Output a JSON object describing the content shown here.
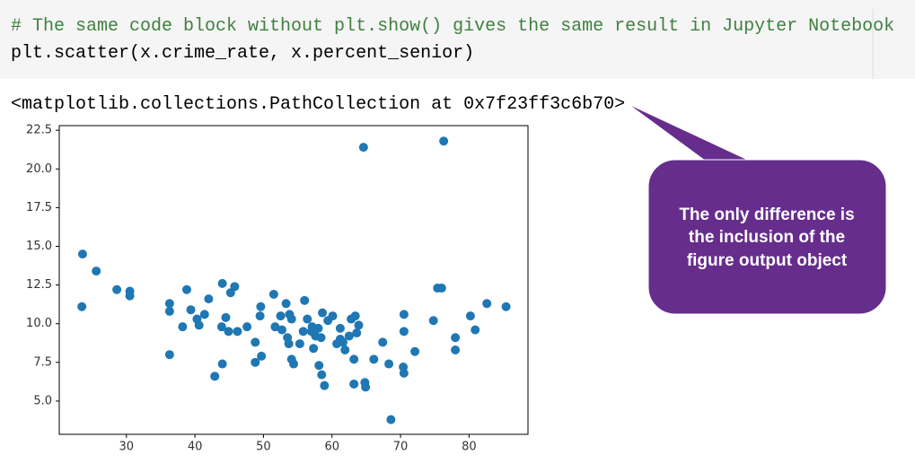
{
  "code": {
    "lines": [
      "# The same code block without plt.show() gives the same result in Jupyter Notebook",
      "plt.scatter(x.crime_rate, x.percent_senior)"
    ]
  },
  "output": {
    "text": "<matplotlib.collections.PathCollection at 0x7f23ff3c6b70>"
  },
  "callout": {
    "lines": [
      "The only difference is",
      "the inclusion of the",
      "figure output object"
    ]
  },
  "chart_data": {
    "type": "scatter",
    "color": "#1f77b4",
    "x": [
      23.5,
      23.6,
      25.6,
      28.6,
      30.5,
      30.5,
      36.3,
      36.3,
      36.3,
      38.8,
      38.2,
      39.4,
      40.3,
      40.6,
      41.4,
      42.0,
      44.0,
      45.2,
      45.8,
      42.9,
      44.0,
      43.9,
      44.5,
      44.9,
      46.2,
      47.6,
      48.8,
      48.8,
      49.7,
      49.6,
      49.5,
      51.5,
      51.7,
      52.5,
      52.7,
      53.3,
      53.5,
      53.8,
      54.1,
      53.7,
      54.1,
      54.4,
      55.3,
      55.8,
      56.0,
      56.4,
      57.0,
      57.1,
      57.3,
      57.6,
      58.0,
      58.1,
      58.4,
      58.5,
      58.9,
      58.6,
      59.4,
      60.1,
      60.7,
      61.2,
      61.2,
      61.6,
      61.9,
      62.5,
      62.8,
      63.2,
      63.2,
      63.4,
      63.6,
      63.9,
      64.8,
      64.9,
      64.6,
      66.1,
      67.4,
      68.3,
      68.6,
      70.5,
      70.5,
      70.4,
      70.5,
      72.1,
      74.8,
      75.4,
      76.0,
      76.3,
      78.0,
      78.0,
      80.2,
      80.9,
      82.6,
      85.4
    ],
    "values": [
      11.1,
      14.5,
      13.4,
      12.2,
      12.1,
      11.8,
      11.3,
      10.8,
      8.0,
      12.2,
      9.8,
      10.9,
      10.3,
      9.9,
      10.6,
      11.6,
      12.6,
      12.0,
      12.4,
      6.6,
      7.4,
      9.8,
      10.4,
      9.5,
      9.5,
      9.8,
      8.8,
      7.5,
      7.9,
      11.1,
      10.5,
      11.9,
      9.8,
      10.5,
      9.6,
      11.3,
      9.1,
      10.6,
      10.3,
      8.7,
      7.7,
      7.4,
      8.7,
      9.5,
      11.5,
      10.3,
      9.5,
      9.8,
      8.4,
      9.2,
      9.7,
      7.3,
      9.1,
      6.7,
      6.0,
      10.7,
      10.2,
      10.5,
      8.7,
      9.7,
      9.0,
      8.8,
      8.3,
      9.2,
      10.3,
      7.7,
      6.1,
      10.5,
      9.4,
      9.9,
      6.2,
      5.9,
      21.4,
      7.7,
      8.8,
      7.4,
      3.8,
      10.6,
      9.5,
      7.2,
      6.8,
      8.2,
      10.2,
      12.3,
      12.3,
      21.8,
      9.1,
      8.3,
      10.5,
      9.6,
      11.3,
      11.1
    ],
    "xlim": [
      20.2,
      88.6
    ],
    "xticks": [
      30,
      40,
      50,
      60,
      70,
      80
    ],
    "ylim": [
      2.85,
      22.8
    ],
    "yticks": [
      {
        "value": 5,
        "label": "5.0"
      },
      7.5,
      {
        "value": 10,
        "label": "10.0"
      },
      12.5,
      {
        "value": 15,
        "label": "15.0"
      },
      17.5,
      {
        "value": 20,
        "label": "20.0"
      },
      22.5
    ]
  }
}
